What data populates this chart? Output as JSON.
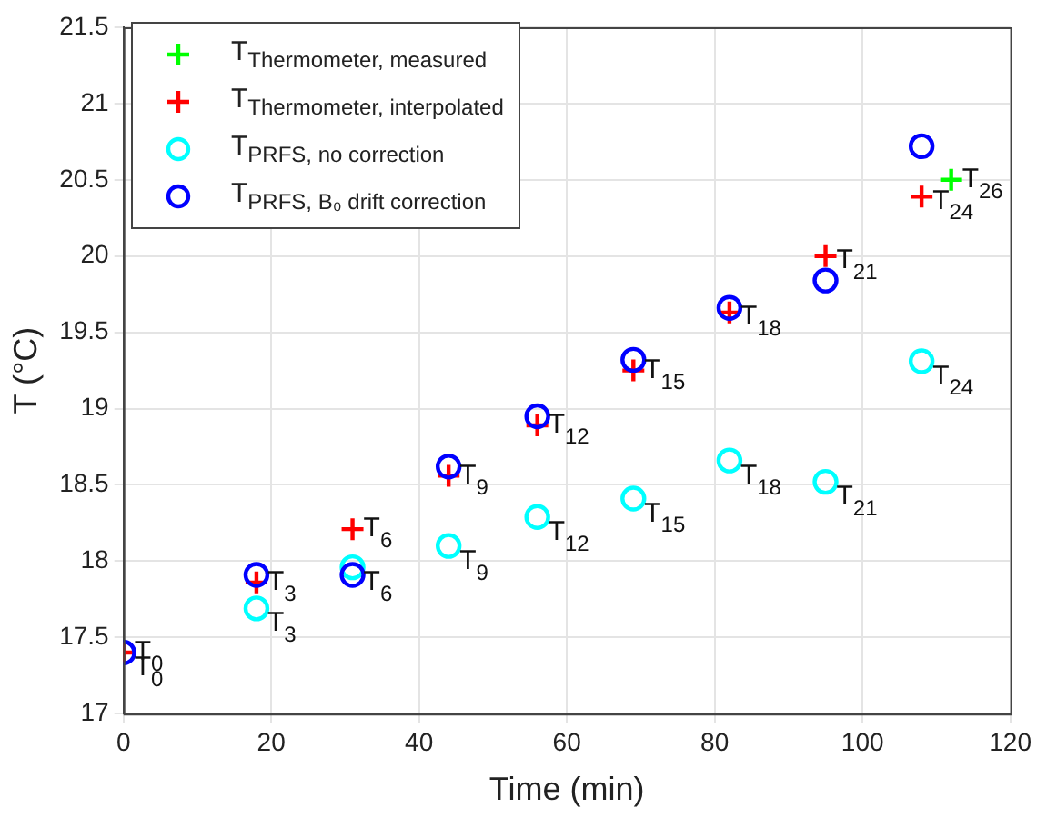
{
  "chart_data": {
    "type": "scatter",
    "xlabel": "Time (min)",
    "ylabel": "T (°C)",
    "xlim": [
      0,
      120
    ],
    "xticks": [
      0,
      20,
      40,
      60,
      80,
      100,
      120
    ],
    "ylim": [
      17,
      21.5
    ],
    "yticks": [
      17,
      17.5,
      18,
      18.5,
      19,
      19.5,
      20,
      20.5,
      21,
      21.5
    ],
    "grid": true,
    "legend": "top left",
    "series": [
      {
        "name": "T$_{Thermometer, measured}$",
        "color": "#00ff00",
        "marker": "cross",
        "x": [
          112
        ],
        "values": [
          20.5
        ]
      },
      {
        "name": "T$_{Thermometer, interpolated}$",
        "color": "#ff0000",
        "marker": "cross",
        "x": [
          0,
          18,
          31,
          44,
          56,
          69,
          82,
          95,
          108
        ],
        "values": [
          17.4,
          17.86,
          18.21,
          18.56,
          18.89,
          19.25,
          19.63,
          20.0,
          20.39
        ]
      },
      {
        "name": "T$_{PRFS, no correction}$",
        "color": "#00ffff",
        "marker": "circle",
        "x": [
          18,
          31,
          44,
          56,
          69,
          82,
          95,
          108
        ],
        "values": [
          17.69,
          17.96,
          18.1,
          18.29,
          18.41,
          18.66,
          18.52,
          19.31
        ]
      },
      {
        "name": "T$_{PRFS, B₀ drift correction}$",
        "color": "#0000ff",
        "marker": "circle",
        "x": [
          0,
          18,
          31,
          44,
          56,
          69,
          82,
          95,
          108
        ],
        "values": [
          17.4,
          17.91,
          17.91,
          18.62,
          18.95,
          19.32,
          19.66,
          19.84,
          20.72
        ]
      }
    ],
    "annotations": [
      {
        "text": "T$_{0}$",
        "x": 0,
        "y": 17.4
      },
      {
        "text": "T$_{0}$",
        "x": 0,
        "y": 17.3
      },
      {
        "text": "T$_{3}$",
        "x": 18,
        "y": 17.86
      },
      {
        "text": "T$_{3}$",
        "x": 18,
        "y": 17.59
      },
      {
        "text": "T$_{6}$",
        "x": 31,
        "y": 18.21
      },
      {
        "text": "T$_{6}$",
        "x": 31,
        "y": 17.86
      },
      {
        "text": "T$_{9}$",
        "x": 44,
        "y": 18.56
      },
      {
        "text": "T$_{9}$",
        "x": 44,
        "y": 18.0
      },
      {
        "text": "T$_{12}$",
        "x": 56,
        "y": 18.89
      },
      {
        "text": "T$_{12}$",
        "x": 56,
        "y": 18.19
      },
      {
        "text": "T$_{15}$",
        "x": 69,
        "y": 19.25
      },
      {
        "text": "T$_{15}$",
        "x": 69,
        "y": 18.31
      },
      {
        "text": "T$_{18}$",
        "x": 82,
        "y": 19.6
      },
      {
        "text": "T$_{18}$",
        "x": 82,
        "y": 18.56
      },
      {
        "text": "T$_{21}$",
        "x": 95,
        "y": 19.97
      },
      {
        "text": "T$_{21}$",
        "x": 95,
        "y": 18.42
      },
      {
        "text": "T$_{24}$",
        "x": 108,
        "y": 20.36
      },
      {
        "text": "T$_{24}$",
        "x": 108,
        "y": 19.21
      },
      {
        "text": "T$_{26}$",
        "x": 112,
        "y": 20.5
      }
    ]
  }
}
